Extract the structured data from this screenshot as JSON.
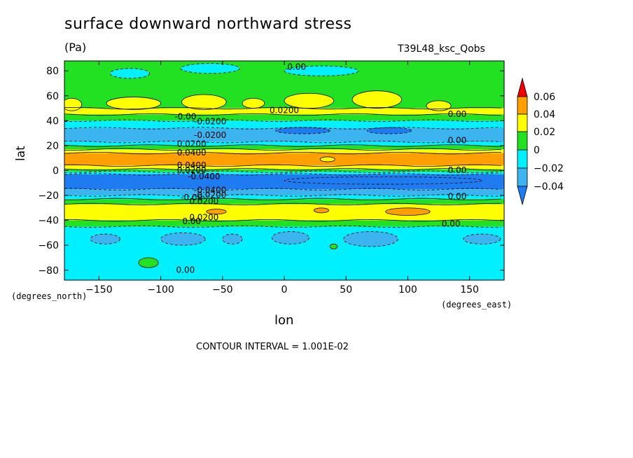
{
  "title": "surface downward northward stress",
  "units": "(Pa)",
  "run_label": "T39L48_ksc_Qobs",
  "contour_interval": "CONTOUR INTERVAL = 1.001E-02",
  "colors": {
    "lt_neg2": "#1e7cf0",
    "neg2_to_neg1": "#3cb4f0",
    "neg1_to_0": "#00f0ff",
    "0_to_1": "#22e022",
    "1_to_2": "#ffff00",
    "2_to_3": "#ffa000",
    "gt_3": "#f00000",
    "dark_blue": "#1e64e6"
  },
  "chart_data": {
    "type": "heatmap",
    "title": "surface downward northward stress",
    "subtitle": "(Pa)",
    "xlabel": "lon",
    "ylabel": "lat",
    "x_unit_label": "(degrees_east)",
    "y_unit_label": "(degrees_north)",
    "xlim": [
      -178,
      178
    ],
    "ylim": [
      -88,
      88
    ],
    "x_ticks": [
      "-150",
      "-100",
      "-50",
      "0",
      "50",
      "100",
      "150"
    ],
    "x_tick_values": [
      -150,
      -100,
      -50,
      0,
      50,
      100,
      150
    ],
    "y_ticks": [
      "80",
      "60",
      "40",
      "20",
      "0",
      "-20",
      "-40",
      "-60",
      "-80"
    ],
    "y_tick_values": [
      80,
      60,
      40,
      20,
      0,
      -20,
      -40,
      -60,
      -80
    ],
    "colorbar": {
      "labels": [
        "0.06",
        "0.04",
        "0.02",
        "0",
        "-0.02",
        "-0.04"
      ],
      "levels": [
        -0.04,
        -0.02,
        0,
        0.02,
        0.04,
        0.06
      ]
    },
    "zonal_bands": [
      {
        "lat_from": 88,
        "lat_to": 50,
        "level": "0_to_1"
      },
      {
        "lat_from": 50,
        "lat_to": 45,
        "level": "1_to_2"
      },
      {
        "lat_from": 45,
        "lat_to": 40,
        "level": "0_to_1"
      },
      {
        "lat_from": 40,
        "lat_to": 34,
        "level": "neg1_to_0"
      },
      {
        "lat_from": 34,
        "lat_to": 23,
        "level": "neg2_to_neg1"
      },
      {
        "lat_from": 23,
        "lat_to": 20,
        "level": "neg1_to_0"
      },
      {
        "lat_from": 20,
        "lat_to": 17,
        "level": "0_to_1"
      },
      {
        "lat_from": 17,
        "lat_to": 14,
        "level": "1_to_2"
      },
      {
        "lat_from": 14,
        "lat_to": 4,
        "level": "2_to_3"
      },
      {
        "lat_from": 4,
        "lat_to": 1,
        "level": "1_to_2"
      },
      {
        "lat_from": 1,
        "lat_to": -1,
        "level": "0_to_1"
      },
      {
        "lat_from": -1,
        "lat_to": -3,
        "level": "neg1_to_0"
      },
      {
        "lat_from": -3,
        "lat_to": -15,
        "level": "lt_neg2"
      },
      {
        "lat_from": -15,
        "lat_to": -20,
        "level": "neg2_to_neg1"
      },
      {
        "lat_from": -20,
        "lat_to": -23,
        "level": "neg1_to_0"
      },
      {
        "lat_from": -23,
        "lat_to": -27,
        "level": "0_to_1"
      },
      {
        "lat_from": -27,
        "lat_to": -40,
        "level": "1_to_2"
      },
      {
        "lat_from": -40,
        "lat_to": -45,
        "level": "0_to_1"
      },
      {
        "lat_from": -45,
        "lat_to": -88,
        "level": "neg1_to_0"
      }
    ],
    "patches": [
      {
        "lon": -125,
        "lat": 78,
        "rlon": 16,
        "rlat": 4,
        "level": "neg1_to_0"
      },
      {
        "lon": -60,
        "lat": 82,
        "rlon": 24,
        "rlat": 4,
        "level": "neg1_to_0"
      },
      {
        "lon": 30,
        "lat": 80,
        "rlon": 30,
        "rlat": 4,
        "level": "neg1_to_0"
      },
      {
        "lon": -172,
        "lat": 53,
        "rlon": 8,
        "rlat": 5,
        "level": "1_to_2"
      },
      {
        "lon": -122,
        "lat": 54,
        "rlon": 22,
        "rlat": 5,
        "level": "1_to_2"
      },
      {
        "lon": -65,
        "lat": 55,
        "rlon": 18,
        "rlat": 6,
        "level": "1_to_2"
      },
      {
        "lon": -25,
        "lat": 54,
        "rlon": 9,
        "rlat": 4,
        "level": "1_to_2"
      },
      {
        "lon": 20,
        "lat": 56,
        "rlon": 20,
        "rlat": 6,
        "level": "1_to_2"
      },
      {
        "lon": 75,
        "lat": 57,
        "rlon": 20,
        "rlat": 7,
        "level": "1_to_2"
      },
      {
        "lon": 125,
        "lat": 52,
        "rlon": 10,
        "rlat": 4,
        "level": "1_to_2"
      },
      {
        "lon": 15,
        "lat": 32,
        "rlon": 22,
        "rlat": 2.5,
        "level": "lt_neg2"
      },
      {
        "lon": 85,
        "lat": 32,
        "rlon": 18,
        "rlat": 2.5,
        "level": "lt_neg2"
      },
      {
        "lon": 35,
        "lat": 9,
        "rlon": 6,
        "rlat": 2,
        "level": "1_to_2"
      },
      {
        "lon": 80,
        "lat": -8,
        "rlon": 80,
        "rlat": 3,
        "level": "lt_neg2"
      },
      {
        "lon": -55,
        "lat": -33,
        "rlon": 8,
        "rlat": 2,
        "level": "2_to_3"
      },
      {
        "lon": 30,
        "lat": -32,
        "rlon": 6,
        "rlat": 2,
        "level": "2_to_3"
      },
      {
        "lon": 100,
        "lat": -33,
        "rlon": 18,
        "rlat": 3,
        "level": "2_to_3"
      },
      {
        "lon": -145,
        "lat": -55,
        "rlon": 12,
        "rlat": 4,
        "level": "neg2_to_neg1"
      },
      {
        "lon": -82,
        "lat": -55,
        "rlon": 18,
        "rlat": 5,
        "level": "neg2_to_neg1"
      },
      {
        "lon": -42,
        "lat": -55,
        "rlon": 8,
        "rlat": 4,
        "level": "neg2_to_neg1"
      },
      {
        "lon": 5,
        "lat": -54,
        "rlon": 15,
        "rlat": 5,
        "level": "neg2_to_neg1"
      },
      {
        "lon": 70,
        "lat": -55,
        "rlon": 22,
        "rlat": 6,
        "level": "neg2_to_neg1"
      },
      {
        "lon": 160,
        "lat": -55,
        "rlon": 15,
        "rlat": 4,
        "level": "neg2_to_neg1"
      },
      {
        "lon": 40,
        "lat": -61,
        "rlon": 3,
        "rlat": 2,
        "level": "0_to_1"
      },
      {
        "lon": -110,
        "lat": -74,
        "rlon": 8,
        "rlat": 4,
        "level": "0_to_1"
      }
    ],
    "contour_labels": [
      {
        "text": "0.00",
        "lon": 10,
        "lat": 83
      },
      {
        "text": "0.0200",
        "lon": 0,
        "lat": 48
      },
      {
        "text": "0.00",
        "lon": 140,
        "lat": 45
      },
      {
        "text": "-0.00",
        "lon": -80,
        "lat": 43
      },
      {
        "text": "-0.0200",
        "lon": -60,
        "lat": 39
      },
      {
        "text": "-0.0200",
        "lon": -60,
        "lat": 28
      },
      {
        "text": "0.00",
        "lon": 140,
        "lat": 24
      },
      {
        "text": "0.0200",
        "lon": -75,
        "lat": 21
      },
      {
        "text": "0.0400",
        "lon": -75,
        "lat": 14
      },
      {
        "text": "0.0400",
        "lon": -75,
        "lat": 4
      },
      {
        "text": "0.0200",
        "lon": -75,
        "lat": 0
      },
      {
        "text": "0.00",
        "lon": 140,
        "lat": 0
      },
      {
        "text": "-0.0400",
        "lon": -65,
        "lat": -5
      },
      {
        "text": "-0.0400",
        "lon": -60,
        "lat": -16
      },
      {
        "text": "-0.0200",
        "lon": -60,
        "lat": -20
      },
      {
        "text": "-0.00",
        "lon": -75,
        "lat": -22
      },
      {
        "text": "0.0200",
        "lon": -65,
        "lat": -25
      },
      {
        "text": "0.00",
        "lon": 140,
        "lat": -21
      },
      {
        "text": "0.0200",
        "lon": -65,
        "lat": -38
      },
      {
        "text": "0.00",
        "lon": -75,
        "lat": -41
      },
      {
        "text": "0.00",
        "lon": 135,
        "lat": -43
      },
      {
        "text": "0.00",
        "lon": -80,
        "lat": -80
      }
    ]
  }
}
